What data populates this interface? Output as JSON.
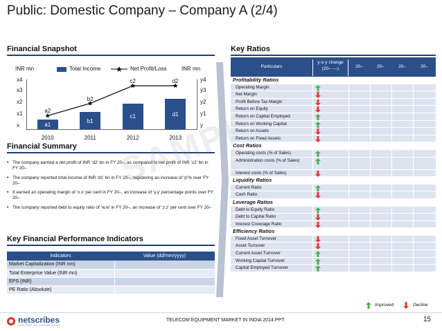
{
  "title": "Public: Domestic Company – Company A (2/4)",
  "sections": {
    "snapshot": "Financial Snapshot",
    "summary": "Financial Summary",
    "kpi": "Key Financial Performance Indicators",
    "ratios": "Key Ratios"
  },
  "colors": {
    "accent": "#2a4f8a",
    "improved": "#4caf50",
    "decline": "#e53935"
  },
  "legend": {
    "left_unit": "INR mn",
    "income": "Total Income",
    "profit": "Net Profit/Loss",
    "right_unit": "INR mn"
  },
  "chart_data": {
    "type": "bar",
    "title": "",
    "categories": [
      "2010",
      "2011",
      "2012",
      "2013"
    ],
    "left_axis_ticks": [
      "x",
      "x1",
      "x2",
      "x3",
      "x4"
    ],
    "right_axis_ticks": [
      "y",
      "y1",
      "y2",
      "y3",
      "y4"
    ],
    "series": [
      {
        "name": "Total Income",
        "kind": "bar",
        "values": [
          0.8,
          1.45,
          2.2,
          2.6
        ],
        "labels": [
          "a1",
          "b1",
          "c1",
          "d1"
        ]
      },
      {
        "name": "Net Profit/Loss",
        "kind": "line",
        "values": [
          1.15,
          2.2,
          3.7,
          3.7
        ],
        "labels": [
          "a2",
          "b2",
          "c2",
          "d2"
        ]
      }
    ],
    "ylim": [
      0,
      4
    ]
  },
  "summary": [
    "The company earned a net profit of INR ‘d2’ bn in FY 20–, as compared to net profit of INR ‘c2’ bn in FY 20–",
    "The company reported total income of INR ‘d1’ bn in FY 20–, registering an increase of ‘p’% over FY 20–",
    "It earned an operating margin of ‘x.x’ per cent in FY 20–, an increase of ‘y.y’ percentage points over FY 20–",
    "The company reported debt to equity ratio of ‘w.w’ in FY 20–, an increase of ‘z.z’ per cent over FY 20–"
  ],
  "watermark": "SAMPLE",
  "kpi": {
    "headers": [
      "Indicators",
      "Value (dd/mm/yyyy)"
    ],
    "rows": [
      "Market Capitalization (INR mn)",
      "Total Enterprise Value (INR mn)",
      "EPS (INR)",
      "PE Ratio (Absolute)"
    ]
  },
  "ratios": {
    "headers": {
      "particulars": "Particulars",
      "yoy": "y-o-y change (20-- ---)",
      "c1": "20–",
      "c2": "20–",
      "c3": "20–",
      "c4": "20–"
    },
    "groups": [
      {
        "name": "Profitability Ratios",
        "items": [
          {
            "label": "Operating Margin",
            "trend": "up"
          },
          {
            "label": "Net Margin",
            "trend": "down"
          },
          {
            "label": "Profit Before Tax Margin",
            "trend": "down"
          },
          {
            "label": "Return on Equity",
            "trend": "down"
          },
          {
            "label": "Return on Capital Employed",
            "trend": "up"
          },
          {
            "label": "Return on Working Capital",
            "trend": "up"
          },
          {
            "label": "Return on Assets",
            "trend": "down"
          },
          {
            "label": "Return on Fixed Assets",
            "trend": "down"
          }
        ]
      },
      {
        "name": "Cost Ratios",
        "items": [
          {
            "label": "Operating costs (% of Sales)",
            "trend": "up"
          },
          {
            "label": "Administration costs (% of Sales)",
            "trend": "up",
            "tall": true
          },
          {
            "label": "Interest costs (% of Sales)",
            "trend": "down"
          }
        ]
      },
      {
        "name": "Liquidity Ratios",
        "items": [
          {
            "label": "Current Ratio",
            "trend": "up"
          },
          {
            "label": "Cash Ratio",
            "trend": "down"
          }
        ]
      },
      {
        "name": "Leverage Ratios",
        "items": [
          {
            "label": "Debt to Equity Ratio",
            "trend": "up"
          },
          {
            "label": "Debt to Capital Ratio",
            "trend": "down"
          },
          {
            "label": "Interest Coverage Ratio",
            "trend": "down"
          }
        ]
      },
      {
        "name": "Efficiency Ratios",
        "items": [
          {
            "label": "Fixed Asset Turnover",
            "trend": "down"
          },
          {
            "label": "Asset Turnover",
            "trend": "down"
          },
          {
            "label": "Current Asset Turnover",
            "trend": "up"
          },
          {
            "label": "Working Capital Turnover",
            "trend": "up"
          },
          {
            "label": "Capital Employed Turnover",
            "trend": "up"
          }
        ]
      }
    ],
    "legend": {
      "improved": "Improved",
      "decline": "Decline"
    }
  },
  "footer": {
    "text": "TELECOM EQUIPMENT MARKET IN INDIA 2014.PPT",
    "page": "15",
    "logo": "netscribes",
    "logo_tagline": "INSIGHT IN KNOWLEDGE"
  }
}
